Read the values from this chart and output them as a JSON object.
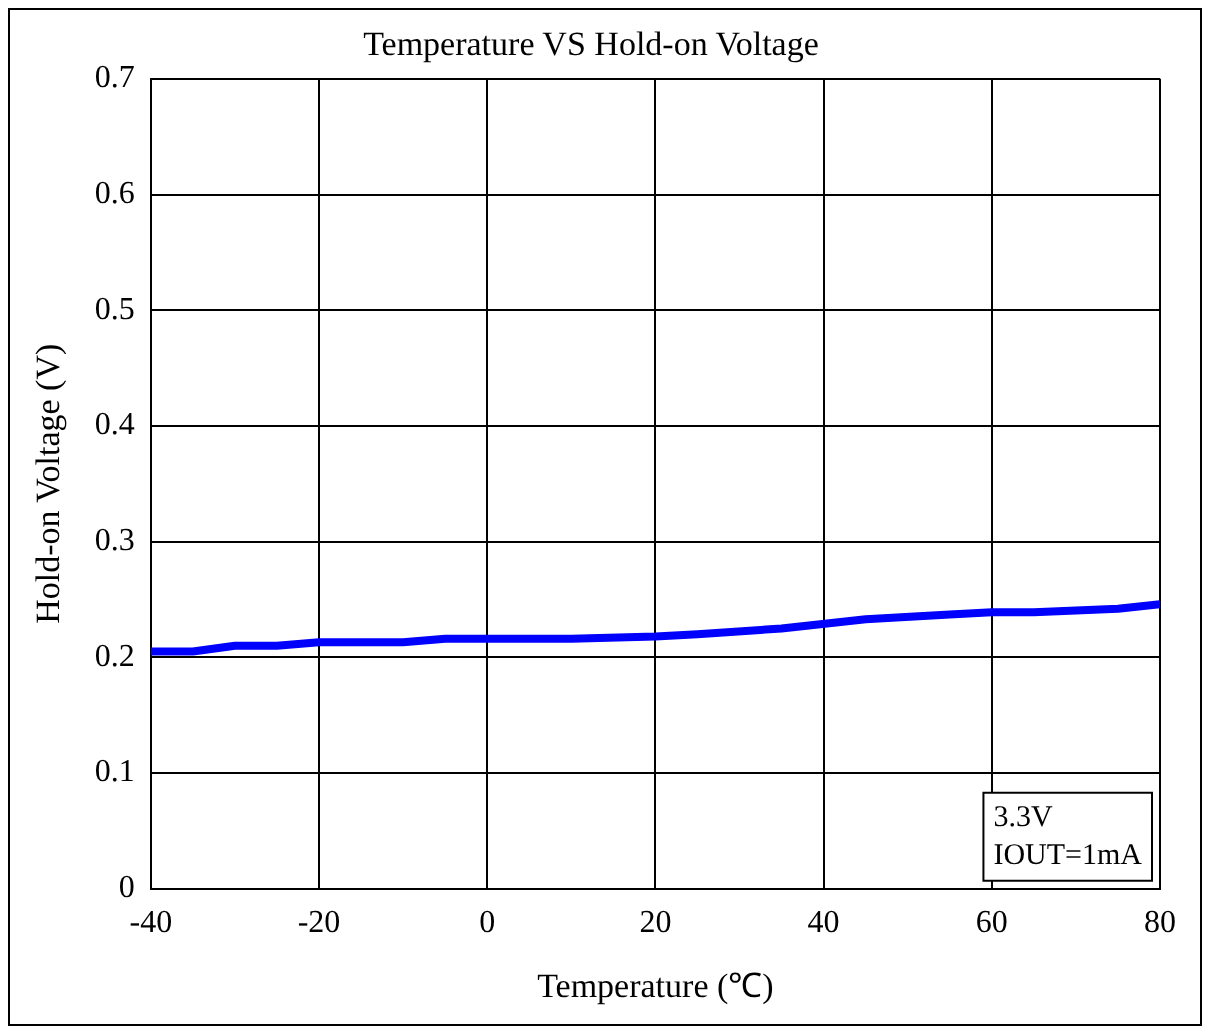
{
  "chart_data": {
    "type": "line",
    "title": "Temperature VS Hold-on Voltage",
    "xlabel": "Temperature (℃)",
    "ylabel": "Hold-on Voltage (V)",
    "x": [
      -40,
      -35,
      -30,
      -25,
      -20,
      -10,
      -5,
      0,
      10,
      20,
      25,
      35,
      45,
      55,
      60,
      65,
      75,
      80
    ],
    "series": [
      {
        "color": "#0000ff",
        "values": [
          0.205,
          0.205,
          0.21,
          0.21,
          0.213,
          0.213,
          0.216,
          0.216,
          0.216,
          0.218,
          0.22,
          0.225,
          0.233,
          0.237,
          0.239,
          0.239,
          0.242,
          0.246
        ]
      }
    ],
    "xlim": [
      -40,
      80
    ],
    "xticks": [
      -40,
      -20,
      0,
      20,
      40,
      60,
      80
    ],
    "ylim": [
      0,
      0.7
    ],
    "yticks": [
      0,
      0.1,
      0.2,
      0.3,
      0.4,
      0.5,
      0.6,
      0.7
    ],
    "grid": true,
    "marker": "none",
    "line_style": "solid",
    "annotations": [
      "3.3V",
      "IOUT=1mA"
    ]
  }
}
